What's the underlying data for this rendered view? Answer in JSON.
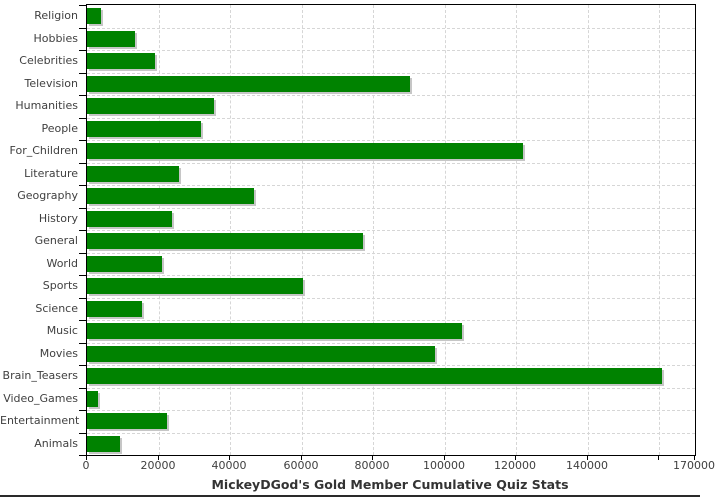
{
  "chart_data": {
    "type": "bar",
    "orientation": "horizontal",
    "title": "MickeyDGod's Gold Member Cumulative Quiz Stats",
    "xlabel": "",
    "ylabel": "",
    "xlim": [
      0,
      170000
    ],
    "grid": "dashed",
    "legend": "none",
    "categories": [
      "Religion",
      "Hobbies",
      "Celebrities",
      "Television",
      "Humanities",
      "People",
      "For_Children",
      "Literature",
      "Geography",
      "History",
      "General",
      "World",
      "Sports",
      "Science",
      "Music",
      "Movies",
      "Brain_Teasers",
      "Video_Games",
      "Entertainment",
      "Animals"
    ],
    "values": [
      4000,
      13300,
      19100,
      90400,
      35600,
      32000,
      122000,
      25700,
      46800,
      23900,
      77300,
      21100,
      60500,
      15400,
      104800,
      97200,
      160900,
      3000,
      22300,
      9300
    ],
    "x_ticks": [
      {
        "value": 0,
        "label": "0"
      },
      {
        "value": 20000,
        "label": "20000"
      },
      {
        "value": 40000,
        "label": "40000"
      },
      {
        "value": 60000,
        "label": "60000"
      },
      {
        "value": 80000,
        "label": "80000"
      },
      {
        "value": 100000,
        "label": "100000"
      },
      {
        "value": 120000,
        "label": "120000"
      },
      {
        "value": 140000,
        "label": "140000"
      },
      {
        "value": 160000,
        "label": ""
      },
      {
        "value": 170000,
        "label": "170000"
      }
    ],
    "colors": {
      "bar": "#008200",
      "bar_shadow": "#c6c6c6",
      "gridline": "#d6d6d6",
      "axis": "#000000",
      "tick_label": "#404040",
      "title": "#333333",
      "background": "#ffffff"
    }
  }
}
